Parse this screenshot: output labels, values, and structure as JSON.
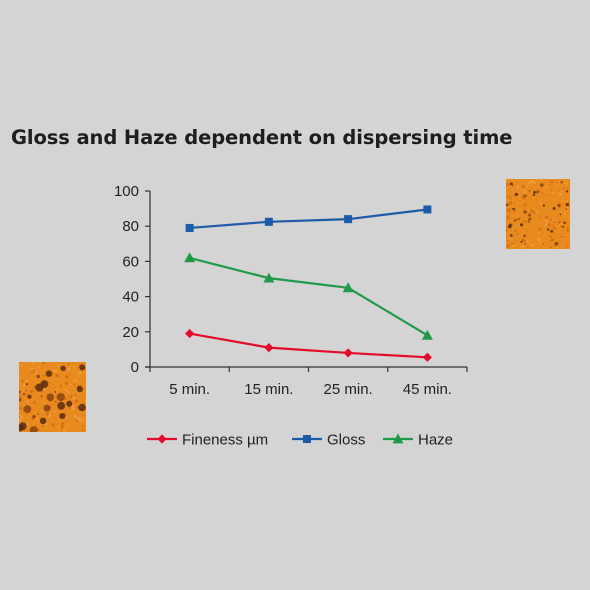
{
  "chart_data": {
    "type": "line",
    "title": "Gloss and Haze dependent on dispersing time",
    "xlabel": "",
    "ylabel": "",
    "categories": [
      "5 min.",
      "15 min.",
      "25 min.",
      "45 min."
    ],
    "ylim": [
      0,
      100
    ],
    "yticks": [
      0,
      20,
      40,
      60,
      80,
      100
    ],
    "grid": false,
    "legend_position": "bottom",
    "series": [
      {
        "name": "Fineness µm",
        "values": [
          19,
          11,
          8,
          5.5
        ],
        "color": "#e30b2a",
        "marker": "diamond"
      },
      {
        "name": "Gloss",
        "values": [
          79,
          82.5,
          84,
          89.5
        ],
        "color": "#1d5aa7",
        "marker": "square"
      },
      {
        "name": "Haze",
        "values": [
          62,
          50.5,
          45,
          18
        ],
        "color": "#1f9a4a",
        "marker": "triangle"
      }
    ]
  },
  "images": {
    "sample_high_gloss": "orange sample texture (fine)",
    "sample_low_gloss": "orange sample texture (coarse)"
  },
  "colors": {
    "background": "#d4d4d4",
    "axis": "#333333",
    "sample_base": "#e88a1e"
  }
}
